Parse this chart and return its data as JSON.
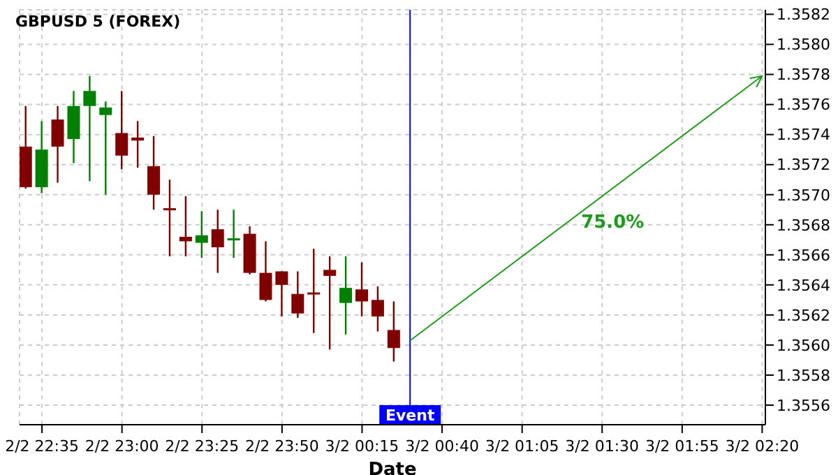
{
  "chart_data": {
    "type": "candlestick",
    "title": "GBPUSD 5 (FOREX)",
    "xlabel": "Date",
    "x": [
      "--02-02T22:30",
      "--02-02T22:35",
      "--02-02T22:40",
      "--02-02T22:45",
      "--02-02T22:50",
      "--02-02T22:55",
      "--02-02T23:00",
      "--02-02T23:05",
      "--02-02T23:10",
      "--02-02T23:15",
      "--02-02T23:20",
      "--02-02T23:25",
      "--02-02T23:30",
      "--02-02T23:35",
      "--02-02T23:40",
      "--02-02T23:45",
      "--02-02T23:50",
      "--02-02T23:55",
      "--02-03T00:00",
      "--02-03T00:05",
      "--02-03T00:10",
      "--02-03T00:15",
      "--02-03T00:20",
      "--02-03T00:25"
    ],
    "ohlc": [
      [
        1.35732,
        1.35759,
        1.35704,
        1.35705
      ],
      [
        1.35705,
        1.35749,
        1.35701,
        1.3573
      ],
      [
        1.3575,
        1.35759,
        1.35708,
        1.35732
      ],
      [
        1.35737,
        1.35769,
        1.35721,
        1.35759
      ],
      [
        1.35759,
        1.35779,
        1.35709,
        1.35769
      ],
      [
        1.35753,
        1.35762,
        1.357,
        1.35758
      ],
      [
        1.35741,
        1.35769,
        1.35717,
        1.35726
      ],
      [
        1.35738,
        1.35749,
        1.35718,
        1.35736
      ],
      [
        1.35719,
        1.35739,
        1.3569,
        1.357
      ],
      [
        1.35691,
        1.3571,
        1.35659,
        1.3569
      ],
      [
        1.35672,
        1.35699,
        1.35659,
        1.35669
      ],
      [
        1.35668,
        1.35689,
        1.35658,
        1.35673
      ],
      [
        1.35677,
        1.3569,
        1.35648,
        1.35665
      ],
      [
        1.3567,
        1.3569,
        1.35658,
        1.35671
      ],
      [
        1.35674,
        1.35679,
        1.35647,
        1.35648
      ],
      [
        1.35648,
        1.35669,
        1.35629,
        1.3563
      ],
      [
        1.35649,
        1.35649,
        1.35619,
        1.3564
      ],
      [
        1.35634,
        1.35649,
        1.35618,
        1.35621
      ],
      [
        1.35635,
        1.35664,
        1.35608,
        1.35634
      ],
      [
        1.3565,
        1.35659,
        1.35597,
        1.35646
      ],
      [
        1.35628,
        1.35659,
        1.35607,
        1.35638
      ],
      [
        1.35637,
        1.35655,
        1.35619,
        1.35629
      ],
      [
        1.3563,
        1.35639,
        1.35609,
        1.35619
      ],
      [
        1.3561,
        1.35629,
        1.35589,
        1.35598
      ]
    ],
    "colors": [
      "#800000",
      "#008000",
      "#800000",
      "#008000",
      "#008000",
      "#008000",
      "#800000",
      "#800000",
      "#800000",
      "#800000",
      "#800000",
      "#008000",
      "#800000",
      "#008000",
      "#800000",
      "#800000",
      "#800000",
      "#800000",
      "#800000",
      "#800000",
      "#008000",
      "#800000",
      "#800000",
      "#800000"
    ],
    "series": [
      {
        "type": "line",
        "color": "#1f9a1f",
        "x": [
          "--02-03T00:30",
          "--02-03T02:20"
        ],
        "values": [
          1.35603,
          1.35779
        ]
      }
    ],
    "annotations": [
      "75.0%"
    ],
    "ref_lines": [
      {
        "axis": "x",
        "value": "--02-03T00:30",
        "label": "Event",
        "color": "#0000ff"
      }
    ],
    "xlim": [
      "--02-02T22:28",
      "--02-03T02:21"
    ],
    "ylim": [
      1.35547,
      1.35823
    ],
    "xticks": [
      {
        "value": "--02-02T22:35",
        "label": "2/2 22:35"
      },
      {
        "value": "--02-02T23:00",
        "label": "2/2 23:00"
      },
      {
        "value": "--02-02T23:25",
        "label": "2/2 23:25"
      },
      {
        "value": "--02-02T23:50",
        "label": "2/2 23:50"
      },
      {
        "value": "--02-03T00:15",
        "label": "3/2 00:15"
      },
      {
        "value": "--02-03T00:40",
        "label": "3/2 00:40"
      },
      {
        "value": "--02-03T01:05",
        "label": "3/2 01:05"
      },
      {
        "value": "--02-03T01:30",
        "label": "3/2 01:30"
      },
      {
        "value": "--02-03T01:55",
        "label": "3/2 01:55"
      },
      {
        "value": "--02-03T02:20",
        "label": "3/2 02:20"
      }
    ],
    "yticks": [
      1.3556,
      1.3558,
      {
        "value": 1.356,
        "label": "1.3560"
      },
      1.3562,
      1.3564,
      1.3566,
      1.3568,
      {
        "value": 1.357,
        "label": "1.3570"
      },
      1.3572,
      1.3574,
      1.3576,
      1.3578,
      {
        "value": 1.358,
        "label": "1.3580"
      },
      1.3582
    ],
    "grid": true,
    "line_style": "solid"
  }
}
